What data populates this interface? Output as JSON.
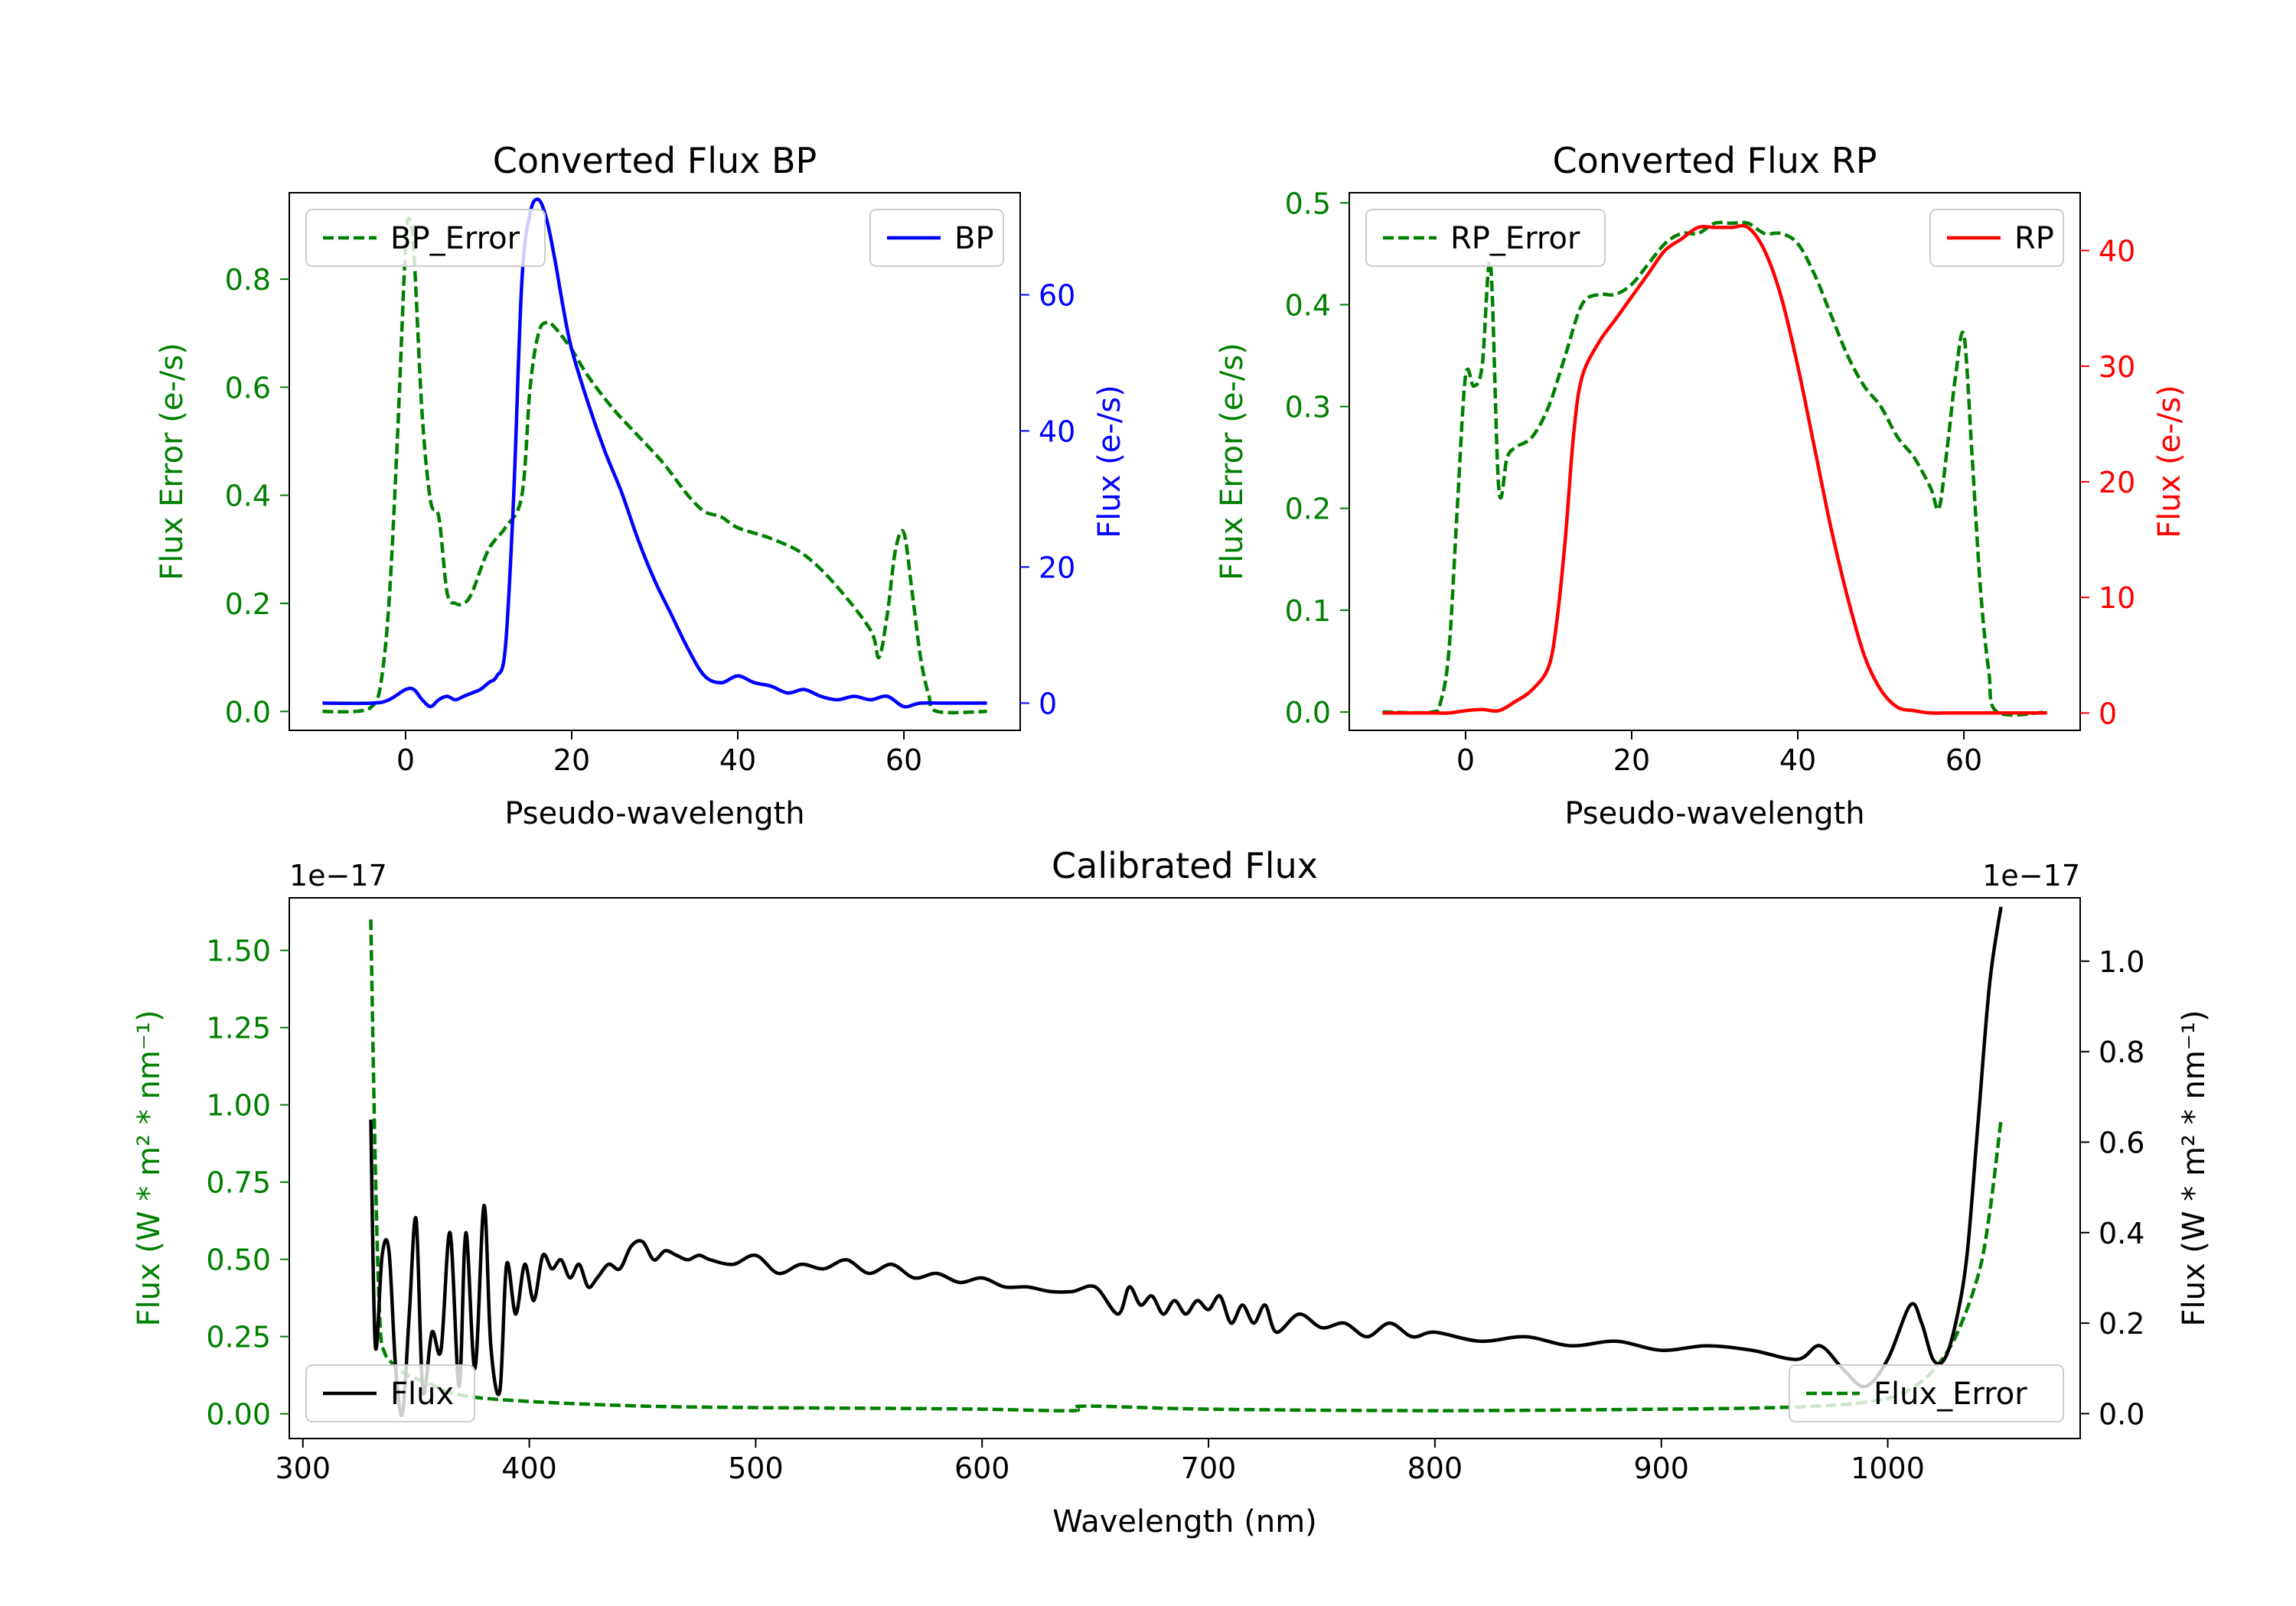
{
  "colors": {
    "green": "#008000",
    "blue": "#0000ff",
    "red": "#ff0000",
    "black": "#000000"
  },
  "chart_data": [
    {
      "id": "bp",
      "type": "line",
      "title": "Converted Flux BP",
      "xlabel": "Pseudo-wavelength",
      "xlim": [
        -14,
        74
      ],
      "xticks": [
        0,
        20,
        40,
        60
      ],
      "xtick_labels": [
        "0",
        "20",
        "40",
        "60"
      ],
      "left_axis": {
        "label": "Flux Error (e-/s)",
        "color": "green",
        "ylim": [
          -0.035,
          0.96
        ],
        "ticks": [
          0.0,
          0.2,
          0.4,
          0.6,
          0.8
        ],
        "tick_labels": [
          "0.0",
          "0.2",
          "0.4",
          "0.6",
          "0.8"
        ]
      },
      "right_axis": {
        "label": "Flux (e-/s)",
        "color": "blue",
        "ylim": [
          -4,
          75
        ],
        "ticks": [
          0,
          20,
          40,
          60
        ],
        "tick_labels": [
          "0",
          "20",
          "40",
          "60"
        ]
      },
      "series": [
        {
          "name": "BP_Error",
          "axis": "left",
          "color": "green",
          "style": "dashed",
          "x": [
            -10,
            -6,
            -4,
            -3,
            -2,
            -1,
            0,
            0.5,
            1,
            2,
            3,
            4,
            5,
            6,
            7,
            8,
            10,
            12,
            14,
            15,
            16,
            17,
            18,
            20,
            22,
            25,
            28,
            31,
            34,
            36,
            38,
            40,
            44,
            48,
            52,
            56,
            57,
            58,
            59,
            60,
            61,
            62,
            63,
            64,
            70
          ],
          "values": [
            0.0,
            0.0,
            0.01,
            0.05,
            0.2,
            0.5,
            0.86,
            0.91,
            0.85,
            0.55,
            0.39,
            0.36,
            0.22,
            0.2,
            0.2,
            0.22,
            0.3,
            0.34,
            0.4,
            0.6,
            0.7,
            0.72,
            0.71,
            0.67,
            0.62,
            0.56,
            0.51,
            0.46,
            0.4,
            0.37,
            0.36,
            0.34,
            0.32,
            0.29,
            0.23,
            0.15,
            0.1,
            0.18,
            0.3,
            0.33,
            0.22,
            0.1,
            0.03,
            0.0,
            0.0
          ]
        },
        {
          "name": "BP",
          "axis": "right",
          "color": "blue",
          "style": "solid",
          "x": [
            -10,
            -4,
            -2,
            0,
            1,
            2,
            3,
            4,
            5,
            6,
            7,
            8,
            9,
            10,
            11,
            12,
            13,
            14,
            15,
            16,
            17,
            18,
            19,
            20,
            22,
            24,
            26,
            28,
            30,
            32,
            34,
            36,
            38,
            40,
            42,
            44,
            46,
            48,
            50,
            52,
            54,
            56,
            58,
            60,
            62,
            65,
            70
          ],
          "values": [
            0,
            0,
            0.5,
            2,
            2,
            0.5,
            -0.5,
            0.5,
            1,
            0.5,
            1,
            1.5,
            2,
            3,
            4,
            8,
            30,
            62,
            72,
            74,
            71,
            65,
            58,
            52,
            44,
            37,
            31,
            24,
            18,
            13,
            8,
            4,
            3,
            4,
            3,
            2.5,
            1.5,
            2,
            1,
            0.5,
            1,
            0.5,
            1,
            -0.5,
            0,
            0,
            0
          ]
        }
      ],
      "legend": [
        {
          "label": "BP_Error",
          "position": "upper-left"
        },
        {
          "label": "BP",
          "position": "upper-right"
        }
      ]
    },
    {
      "id": "rp",
      "type": "line",
      "title": "Converted Flux RP",
      "xlabel": "Pseudo-wavelength",
      "xlim": [
        -14,
        74
      ],
      "xticks": [
        0,
        20,
        40,
        60
      ],
      "xtick_labels": [
        "0",
        "20",
        "40",
        "60"
      ],
      "left_axis": {
        "label": "Flux Error (e-/s)",
        "color": "green",
        "ylim": [
          -0.018,
          0.51
        ],
        "ticks": [
          0.0,
          0.1,
          0.2,
          0.3,
          0.4,
          0.5
        ],
        "tick_labels": [
          "0.0",
          "0.1",
          "0.2",
          "0.3",
          "0.4",
          "0.5"
        ]
      },
      "right_axis": {
        "label": "Flux (e-/s)",
        "color": "red",
        "ylim": [
          -1.5,
          45
        ],
        "ticks": [
          0,
          10,
          20,
          30,
          40
        ],
        "tick_labels": [
          "0",
          "10",
          "20",
          "30",
          "40"
        ]
      },
      "series": [
        {
          "name": "RP_Error",
          "axis": "left",
          "color": "green",
          "style": "dashed",
          "x": [
            -10,
            -4,
            -3,
            -2,
            -1,
            0,
            1,
            2,
            3,
            4,
            5,
            6,
            8,
            10,
            12,
            14,
            16,
            18,
            20,
            22,
            24,
            26,
            28,
            30,
            32,
            34,
            36,
            38,
            40,
            42,
            44,
            46,
            48,
            50,
            52,
            54,
            56,
            57,
            58,
            59,
            60,
            61,
            62,
            63,
            64,
            70
          ],
          "values": [
            0.0,
            0.0,
            0.01,
            0.06,
            0.2,
            0.33,
            0.32,
            0.34,
            0.44,
            0.22,
            0.25,
            0.26,
            0.27,
            0.3,
            0.35,
            0.4,
            0.41,
            0.41,
            0.42,
            0.44,
            0.46,
            0.47,
            0.47,
            0.48,
            0.48,
            0.48,
            0.47,
            0.47,
            0.46,
            0.43,
            0.39,
            0.35,
            0.32,
            0.3,
            0.27,
            0.25,
            0.22,
            0.2,
            0.26,
            0.33,
            0.37,
            0.25,
            0.12,
            0.04,
            0.0,
            0.0
          ]
        },
        {
          "name": "RP",
          "axis": "right",
          "color": "red",
          "style": "solid",
          "x": [
            -10,
            -4,
            -2,
            0,
            2,
            4,
            6,
            8,
            10,
            11,
            12,
            13,
            14,
            16,
            18,
            20,
            22,
            24,
            26,
            28,
            30,
            32,
            34,
            36,
            38,
            40,
            42,
            44,
            46,
            48,
            50,
            52,
            54,
            56,
            58,
            60,
            65,
            70
          ],
          "values": [
            0,
            0,
            0,
            0.2,
            0.3,
            0.2,
            1,
            2,
            4,
            8,
            15,
            24,
            29,
            32,
            34,
            36,
            38,
            40,
            41,
            42,
            42,
            42,
            42,
            40,
            36,
            30,
            23,
            16,
            10,
            5,
            2,
            0.5,
            0.2,
            0,
            0,
            0,
            0,
            0
          ]
        }
      ],
      "legend": [
        {
          "label": "RP_Error",
          "position": "upper-left"
        },
        {
          "label": "RP",
          "position": "upper-right"
        }
      ]
    },
    {
      "id": "cal",
      "type": "line",
      "title": "Calibrated Flux",
      "xlabel": "Wavelength (nm)",
      "xlim": [
        294,
        1085
      ],
      "xticks": [
        300,
        400,
        500,
        600,
        700,
        800,
        900,
        1000
      ],
      "xtick_labels": [
        "300",
        "400",
        "500",
        "600",
        "700",
        "800",
        "900",
        "1000"
      ],
      "left_axis": {
        "label": "Flux (W * m² * nm⁻¹)",
        "color": "green",
        "offset_label": "1e−17",
        "ylim": [
          -0.08,
          1.67
        ],
        "ticks": [
          0.0,
          0.25,
          0.5,
          0.75,
          1.0,
          1.25,
          1.5
        ],
        "tick_labels": [
          "0.00",
          "0.25",
          "0.50",
          "0.75",
          "1.00",
          "1.25",
          "1.50"
        ]
      },
      "right_axis": {
        "label": "Flux (W * m² * nm⁻¹)",
        "color": "black",
        "offset_label": "1e−17",
        "ylim": [
          -0.055,
          1.14
        ],
        "ticks": [
          0.0,
          0.2,
          0.4,
          0.6,
          0.8,
          1.0
        ],
        "tick_labels": [
          "0.0",
          "0.2",
          "0.4",
          "0.6",
          "0.8",
          "1.0"
        ]
      },
      "series": [
        {
          "name": "Flux_Error",
          "axis": "left",
          "color": "green",
          "style": "dashed",
          "x": [
            330,
            332,
            334,
            336,
            340,
            345,
            355,
            370,
            400,
            450,
            500,
            550,
            600,
            640,
            645,
            700,
            800,
            900,
            950,
            980,
            1000,
            1010,
            1020,
            1030,
            1040,
            1045,
            1050
          ],
          "values": [
            1.6,
            0.8,
            0.3,
            0.2,
            0.16,
            0.13,
            0.1,
            0.06,
            0.04,
            0.025,
            0.02,
            0.018,
            0.015,
            0.01,
            0.025,
            0.015,
            0.01,
            0.015,
            0.02,
            0.03,
            0.05,
            0.08,
            0.14,
            0.25,
            0.45,
            0.65,
            0.95
          ]
        },
        {
          "name": "Flux",
          "axis": "right",
          "color": "black",
          "style": "solid",
          "x": [
            330,
            332,
            335,
            338,
            341,
            344,
            347,
            350,
            353,
            357,
            361,
            365,
            369,
            372,
            376,
            380,
            383,
            387,
            390,
            394,
            398,
            402,
            406,
            410,
            414,
            418,
            422,
            426,
            430,
            435,
            440,
            445,
            450,
            455,
            460,
            465,
            470,
            475,
            480,
            490,
            500,
            510,
            520,
            530,
            540,
            550,
            560,
            570,
            580,
            590,
            600,
            610,
            620,
            630,
            640,
            650,
            660,
            665,
            670,
            675,
            680,
            685,
            690,
            695,
            700,
            705,
            710,
            715,
            720,
            725,
            730,
            740,
            750,
            760,
            770,
            780,
            790,
            800,
            820,
            840,
            860,
            880,
            900,
            920,
            940,
            960,
            970,
            980,
            990,
            1000,
            1010,
            1015,
            1020,
            1025,
            1030,
            1035,
            1040,
            1045,
            1050
          ],
          "values": [
            0.65,
            0.15,
            0.35,
            0.36,
            0.1,
            0.0,
            0.22,
            0.43,
            0.05,
            0.18,
            0.14,
            0.4,
            0.06,
            0.4,
            0.1,
            0.46,
            0.15,
            0.05,
            0.33,
            0.22,
            0.33,
            0.25,
            0.35,
            0.32,
            0.34,
            0.3,
            0.33,
            0.28,
            0.3,
            0.33,
            0.32,
            0.37,
            0.38,
            0.34,
            0.36,
            0.35,
            0.34,
            0.35,
            0.34,
            0.33,
            0.35,
            0.31,
            0.33,
            0.32,
            0.34,
            0.31,
            0.33,
            0.3,
            0.31,
            0.29,
            0.3,
            0.28,
            0.28,
            0.27,
            0.27,
            0.28,
            0.22,
            0.28,
            0.24,
            0.26,
            0.22,
            0.25,
            0.22,
            0.25,
            0.23,
            0.26,
            0.2,
            0.24,
            0.2,
            0.24,
            0.18,
            0.22,
            0.19,
            0.2,
            0.17,
            0.2,
            0.17,
            0.18,
            0.16,
            0.17,
            0.15,
            0.16,
            0.14,
            0.15,
            0.14,
            0.12,
            0.15,
            0.1,
            0.06,
            0.12,
            0.24,
            0.2,
            0.12,
            0.12,
            0.2,
            0.35,
            0.65,
            0.95,
            1.12
          ]
        }
      ],
      "legend": [
        {
          "label": "Flux",
          "position": "lower-left"
        },
        {
          "label": "Flux_Error",
          "position": "lower-right"
        }
      ]
    }
  ]
}
